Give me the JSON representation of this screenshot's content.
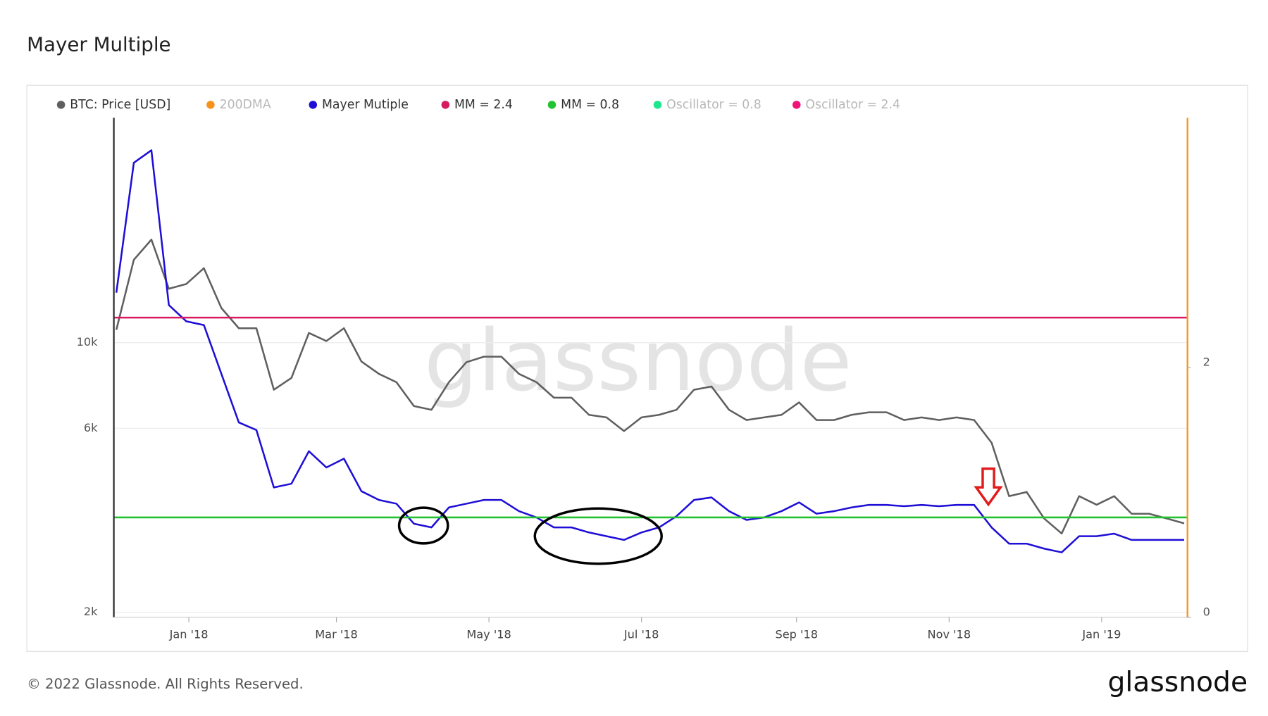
{
  "chart_data": {
    "type": "line",
    "title": "Mayer Multiple",
    "watermark": "glassnode",
    "footer": "© 2022 Glassnode. All Rights Reserved.",
    "logo": "glassnode",
    "x": [
      "2017-12-03",
      "2017-12-10",
      "2017-12-17",
      "2017-12-24",
      "2017-12-31",
      "2018-01-07",
      "2018-01-14",
      "2018-01-21",
      "2018-01-28",
      "2018-02-04",
      "2018-02-11",
      "2018-02-18",
      "2018-02-25",
      "2018-03-04",
      "2018-03-11",
      "2018-03-18",
      "2018-03-25",
      "2018-04-01",
      "2018-04-08",
      "2018-04-15",
      "2018-04-22",
      "2018-04-29",
      "2018-05-06",
      "2018-05-13",
      "2018-05-20",
      "2018-05-27",
      "2018-06-03",
      "2018-06-10",
      "2018-06-17",
      "2018-06-24",
      "2018-07-01",
      "2018-07-08",
      "2018-07-15",
      "2018-07-22",
      "2018-07-29",
      "2018-08-05",
      "2018-08-12",
      "2018-08-19",
      "2018-08-26",
      "2018-09-02",
      "2018-09-09",
      "2018-09-16",
      "2018-09-23",
      "2018-09-30",
      "2018-10-07",
      "2018-10-14",
      "2018-10-21",
      "2018-10-28",
      "2018-11-04",
      "2018-11-11",
      "2018-11-18",
      "2018-11-25",
      "2018-12-02",
      "2018-12-09",
      "2018-12-16",
      "2018-12-23",
      "2018-12-30",
      "2019-01-06",
      "2019-01-13",
      "2019-01-20",
      "2019-01-27",
      "2019-02-03"
    ],
    "xlim": [
      "2017-12-02",
      "2019-02-04"
    ],
    "xticks": [
      {
        "value": "2018-01-01",
        "label": "Jan '18"
      },
      {
        "value": "2018-03-01",
        "label": "Mar '18"
      },
      {
        "value": "2018-05-01",
        "label": "May '18"
      },
      {
        "value": "2018-07-01",
        "label": "Jul '18"
      },
      {
        "value": "2018-09-01",
        "label": "Sep '18"
      },
      {
        "value": "2018-11-01",
        "label": "Nov '18"
      },
      {
        "value": "2019-01-01",
        "label": "Jan '19"
      }
    ],
    "ylim": [
      1940,
      38300
    ],
    "yscale": "log",
    "yticks": [
      {
        "value": 2000,
        "label": "2k"
      },
      {
        "value": 6000,
        "label": "6k"
      },
      {
        "value": 10000,
        "label": "10k"
      }
    ],
    "y2lim": [
      0,
      4
    ],
    "y2ticks": [
      0,
      2
    ],
    "grid": true,
    "series": [
      {
        "name": "BTC: Price [USD]",
        "color": "#5f5f5f",
        "values": [
          10800,
          16400,
          18500,
          13800,
          14200,
          15600,
          12300,
          10900,
          10900,
          7550,
          8100,
          10600,
          10100,
          10900,
          8940,
          8300,
          7900,
          6850,
          6700,
          7900,
          8900,
          9200,
          9200,
          8300,
          7900,
          7200,
          7200,
          6500,
          6400,
          5900,
          6400,
          6500,
          6700,
          7550,
          7700,
          6700,
          6300,
          6400,
          6500,
          7000,
          6300,
          6300,
          6500,
          6600,
          6600,
          6300,
          6400,
          6300,
          6400,
          6300,
          5500,
          4000,
          4100,
          3500,
          3200,
          4000,
          3800,
          4000,
          3600,
          3600,
          3500,
          3400
        ]
      },
      {
        "name": "200DMA",
        "color": "#f7931a",
        "hidden": true
      },
      {
        "name": "Mayer Mutiple",
        "color": "#1f0fd6",
        "axis": "y2",
        "values": [
          2.6,
          3.64,
          3.74,
          2.5,
          2.37,
          2.34,
          1.95,
          1.56,
          1.5,
          1.04,
          1.07,
          1.33,
          1.2,
          1.27,
          1.01,
          0.94,
          0.91,
          0.75,
          0.72,
          0.88,
          0.91,
          0.94,
          0.94,
          0.85,
          0.8,
          0.72,
          0.72,
          0.68,
          0.65,
          0.62,
          0.68,
          0.72,
          0.81,
          0.94,
          0.96,
          0.85,
          0.78,
          0.8,
          0.85,
          0.92,
          0.83,
          0.85,
          0.88,
          0.9,
          0.9,
          0.89,
          0.9,
          0.89,
          0.9,
          0.9,
          0.72,
          0.59,
          0.59,
          0.55,
          0.52,
          0.65,
          0.65,
          0.67,
          0.62,
          0.62,
          0.62,
          0.62
        ]
      },
      {
        "name": "MM = 2.4",
        "color": "#d81b60",
        "axis": "y2",
        "value": 2.4
      },
      {
        "name": "MM = 0.8",
        "color": "#22c232",
        "axis": "y2",
        "value": 0.8
      },
      {
        "name": "Oscillator = 0.8",
        "color": "#1de68f",
        "axis": "y2",
        "hidden": true
      },
      {
        "name": "Oscillator = 2.4",
        "color": "#f0147a",
        "axis": "y2",
        "hidden": true
      }
    ]
  }
}
